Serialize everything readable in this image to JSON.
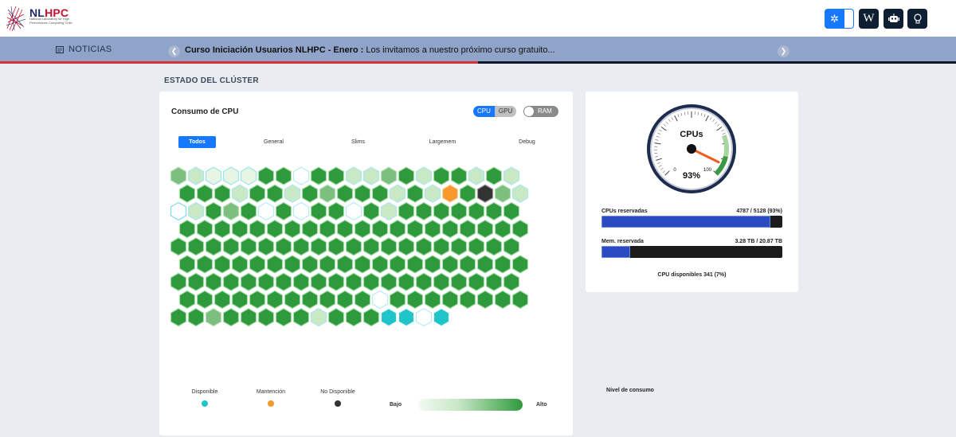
{
  "header": {
    "logo": {
      "brand_nl": "NL",
      "brand_hpc": "HPC",
      "subtitle": "National Laboratory for High Performance Computing Chile"
    },
    "buttons": [
      {
        "name": "settings-toggle",
        "icon": "gear-icon"
      },
      {
        "name": "wiki",
        "icon": "wikipedia-icon",
        "text": "W"
      },
      {
        "name": "robot",
        "icon": "robot-icon"
      },
      {
        "name": "ideas",
        "icon": "lightbulb-icon"
      }
    ]
  },
  "news": {
    "label": "NOTICIAS",
    "headline_bold": "Curso Iniciación Usuarios NLHPC - Enero :",
    "headline_rest": " Los invitamos a nuestro próximo curso gratuito...",
    "progress_fraction": 0.5
  },
  "cluster": {
    "section_title": "ESTADO DEL CLÚSTER",
    "card_title": "Consumo de CPU",
    "resource_toggle": [
      "CPU",
      "GPU"
    ],
    "resource_active": "CPU",
    "ram_switch_label": "RAM",
    "tabs": [
      "Todos",
      "General",
      "Slims",
      "Largemem",
      "Debug"
    ],
    "active_tab": "Todos",
    "colors": {
      "disponible": "#1fc5c9",
      "mantencion": "#f79a2d",
      "no_disponible": "#333333",
      "alto": "#2f9a3c",
      "bajo": "#f2faf2"
    },
    "node_rows": [
      [
        "m",
        "l",
        "v",
        "v",
        "v",
        "h",
        "h",
        "e",
        "h",
        "h",
        "l",
        "l",
        "m",
        "h",
        "l",
        "h",
        "h",
        "l",
        "h",
        "l"
      ],
      [
        "h",
        "h",
        "h",
        "l",
        "h",
        "h",
        "l",
        "h",
        "m",
        "h",
        "h",
        "h",
        "l",
        "h",
        "l",
        "o",
        "h",
        "d",
        "m",
        "l"
      ],
      [
        "c",
        "l",
        "h",
        "m",
        "h",
        "e",
        "h",
        "e",
        "h",
        "h",
        "e",
        "h",
        "l",
        "h",
        "h",
        "h",
        "h",
        "h",
        "h",
        "h"
      ],
      [
        "h",
        "h",
        "h",
        "h",
        "h",
        "h",
        "h",
        "h",
        "h",
        "h",
        "h",
        "h",
        "h",
        "h",
        "h",
        "h",
        "h",
        "h",
        "h",
        "h"
      ],
      [
        "h",
        "h",
        "h",
        "h",
        "h",
        "h",
        "h",
        "h",
        "h",
        "h",
        "h",
        "h",
        "h",
        "h",
        "h",
        "h",
        "h",
        "h",
        "h",
        "h"
      ],
      [
        "h",
        "h",
        "h",
        "h",
        "h",
        "h",
        "h",
        "h",
        "h",
        "h",
        "h",
        "h",
        "h",
        "h",
        "h",
        "h",
        "h",
        "h",
        "h",
        "h"
      ],
      [
        "h",
        "h",
        "h",
        "h",
        "h",
        "h",
        "h",
        "h",
        "h",
        "h",
        "h",
        "h",
        "h",
        "h",
        "h",
        "h",
        "h",
        "h",
        "h",
        "h"
      ],
      [
        "h",
        "h",
        "h",
        "h",
        "h",
        "h",
        "h",
        "h",
        "h",
        "h",
        "h",
        "e",
        "h",
        "h",
        "h",
        "h",
        "h",
        "h",
        "h",
        "h"
      ],
      [
        "h",
        "h",
        "m",
        "h",
        "h",
        "h",
        "h",
        "h",
        "l",
        "h",
        "h",
        "h",
        "a",
        "a",
        "e",
        "a"
      ]
    ],
    "legend": {
      "disponible": "Disponible",
      "mantencion": "Mantención",
      "no_disponible": "No Disponible",
      "nivel_title": "Nivel de consumo",
      "bajo": "Bajo",
      "alto": "Alto"
    }
  },
  "summary": {
    "gauge": {
      "title": "CPUs",
      "value_percent": 93,
      "value_label": "93%",
      "min_label": "0",
      "max_label": "100"
    },
    "cpus_reservadas": {
      "label": "CPUs reservadas",
      "value": "4787 / 5128 (93%)",
      "fraction": 0.933
    },
    "mem_reservada": {
      "label": "Mem. reservada",
      "value": "3.28 TB / 20.87 TB",
      "fraction": 0.157
    },
    "cpu_disponibles": "CPU disponibles 341 (7%)"
  }
}
